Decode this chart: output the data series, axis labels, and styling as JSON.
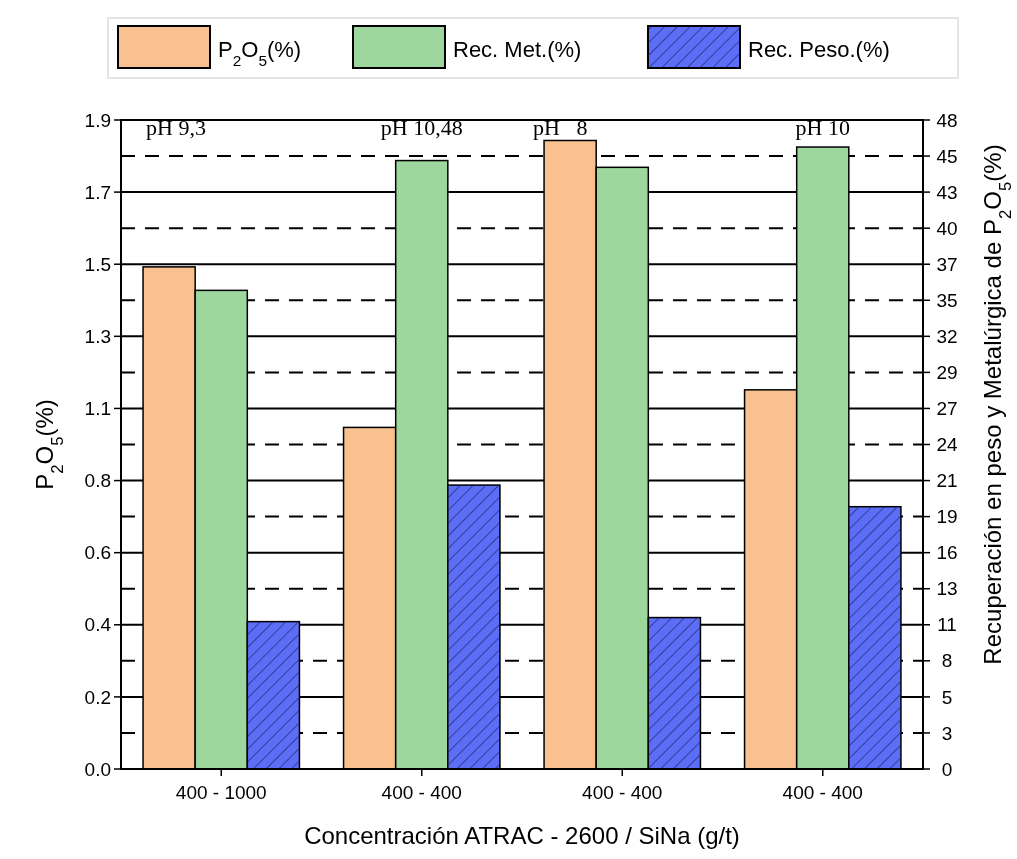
{
  "chart_data": {
    "type": "bar",
    "xlabel": "Concentración ATRAC - 2600 / SiNa (g/t)",
    "ylabel": "P$_{2}$O$_{5}$(%)",
    "y2label": "Recuperación en peso y Metalúrgica de P$_{2}$O$_{5}$(%)",
    "categories": [
      "400 - 1000",
      "400 - 400",
      "400 - 400",
      "400 - 400"
    ],
    "series": [
      {
        "name": "P$_{2}$O$_{5}$(%)",
        "color": "#f9c18f",
        "values": [
          1.47,
          1.0,
          1.84,
          1.11
        ]
      },
      {
        "name": "Rec. Met.(%)",
        "color": "#9dd79d",
        "axis": "y2",
        "values": [
          35.4,
          45.0,
          44.5,
          46.0
        ]
      },
      {
        "name": "Rec. Peso.(%)",
        "color": "#5b6ef5",
        "axis": "y2",
        "values": [
          10.9,
          21.0,
          11.2,
          19.4
        ]
      }
    ],
    "annotations": [
      "pH 9,3",
      "pH 10,48",
      "pH   8",
      "pH 10"
    ],
    "ylim": [
      0,
      1.9
    ],
    "yticks": [
      {
        "value": 0,
        "label": "0.0"
      },
      {
        "value": 0.2111,
        "label": "0.2"
      },
      {
        "value": 0.4222,
        "label": "0.4"
      },
      {
        "value": 0.6333,
        "label": "0.6"
      },
      {
        "value": 0.8444,
        "label": "0.8"
      },
      {
        "value": 1.0556,
        "label": "1.1"
      },
      {
        "value": 1.2667,
        "label": "1.3"
      },
      {
        "value": 1.4778,
        "label": "1.5"
      },
      {
        "value": 1.6889,
        "label": "1.7"
      },
      1.9
    ],
    "y2lim": [
      0,
      48
    ],
    "y2ticks": [
      0,
      {
        "value": 2.667,
        "label": "3"
      },
      {
        "value": 5.333,
        "label": "5"
      },
      8,
      {
        "value": 10.667,
        "label": "11"
      },
      {
        "value": 13.333,
        "label": "13"
      },
      16,
      {
        "value": 18.667,
        "label": "19"
      },
      {
        "value": 21.333,
        "label": "21"
      },
      24,
      {
        "value": 26.667,
        "label": "27"
      },
      {
        "value": 29.333,
        "label": "29"
      },
      32,
      {
        "value": 34.667,
        "label": "35"
      },
      {
        "value": 37.333,
        "label": "37"
      },
      40,
      {
        "value": 42.667,
        "label": "43"
      },
      {
        "value": 45.333,
        "label": "45"
      },
      48
    ],
    "grid": true,
    "legend": "top"
  }
}
